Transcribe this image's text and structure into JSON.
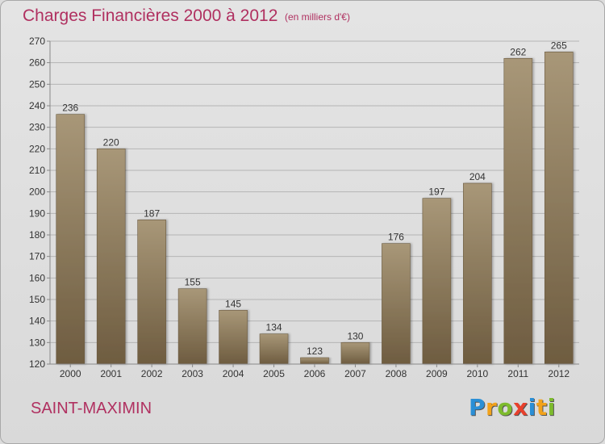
{
  "title": "Charges Financières 2000 à 2012",
  "subtitle": "(en milliers d'€)",
  "commune": "SAINT-MAXIMIN",
  "brand": {
    "letters": [
      "P",
      "r",
      "o",
      "x",
      "i",
      "t",
      "i"
    ],
    "colors": [
      "#2a8fd6",
      "#f2a21b",
      "#7dbb2d",
      "#e8402c",
      "#2a8fd6",
      "#f2a21b",
      "#7dbb2d"
    ]
  },
  "chart_data": {
    "type": "bar",
    "title": "Charges Financières 2000 à 2012",
    "subtitle": "(en milliers d'€)",
    "categories": [
      "2000",
      "2001",
      "2002",
      "2003",
      "2004",
      "2005",
      "2006",
      "2007",
      "2008",
      "2009",
      "2010",
      "2011",
      "2012"
    ],
    "values": [
      236,
      220,
      187,
      155,
      145,
      134,
      123,
      130,
      176,
      197,
      204,
      262,
      265
    ],
    "ylim": [
      120,
      270
    ],
    "yticks": [
      120,
      130,
      140,
      150,
      160,
      170,
      180,
      190,
      200,
      210,
      220,
      230,
      240,
      250,
      260,
      270
    ],
    "grid": true,
    "bar_color": "#8c7a5e",
    "accent_color": "#b03060"
  }
}
